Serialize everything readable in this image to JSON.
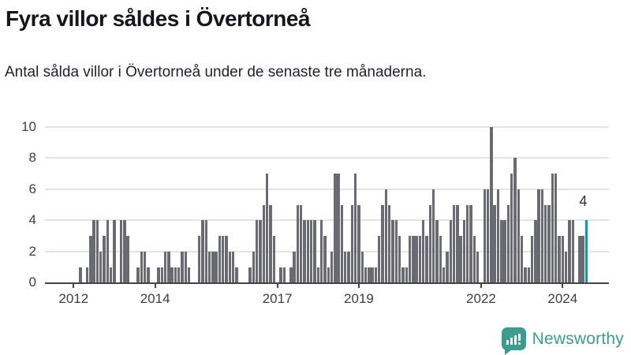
{
  "title": "Fyra villor såldes i Övertorneå",
  "subtitle": "Antal sålda villor i Övertorneå under de senaste tre månaderna.",
  "annotation": {
    "label": "4"
  },
  "logo": {
    "text": "Newsworthy"
  },
  "colors": {
    "bar": "#6a6a72",
    "highlight": "#00a0a0",
    "grid": "#e4e4e4",
    "axis": "#454545",
    "tick_text": "#3d3f42",
    "logo": "#3d9c8e"
  },
  "chart_data": {
    "type": "bar",
    "title": "Fyra villor såldes i Övertorneå",
    "subtitle": "Antal sålda villor i Övertorneå under de senaste tre månaderna.",
    "x_start": "2012-01",
    "x_end": "2024-08",
    "frequency": "monthly",
    "ylim": [
      0,
      10
    ],
    "grid": true,
    "y_ticks": [
      0,
      2,
      4,
      6,
      8,
      10
    ],
    "x_ticks": [
      {
        "label": "2012",
        "month_index": 0
      },
      {
        "label": "2014",
        "month_index": 24
      },
      {
        "label": "2017",
        "month_index": 60
      },
      {
        "label": "2019",
        "month_index": 84
      },
      {
        "label": "2022",
        "month_index": 120
      },
      {
        "label": "2024",
        "month_index": 144
      }
    ],
    "series": [
      {
        "name": "Antal sålda villor",
        "values_by_year": {
          "2012": [
            0,
            0,
            1,
            0,
            1,
            3,
            4,
            4,
            2,
            3,
            4,
            1
          ],
          "2013": [
            4,
            0,
            4,
            4,
            3,
            0,
            0,
            1,
            2,
            2,
            1,
            0
          ],
          "2014": [
            0,
            1,
            1,
            2,
            2,
            1,
            1,
            1,
            2,
            2,
            1,
            0
          ],
          "2015": [
            0,
            3,
            4,
            4,
            2,
            2,
            2,
            3,
            3,
            3,
            2,
            2
          ],
          "2016": [
            1,
            0,
            0,
            0,
            1,
            2,
            4,
            4,
            5,
            7,
            5,
            3
          ],
          "2017": [
            0,
            1,
            1,
            0,
            1,
            2,
            5,
            5,
            4,
            4,
            4,
            4
          ],
          "2018": [
            1,
            4,
            3,
            1,
            2,
            7,
            7,
            5,
            2,
            2,
            5,
            7
          ],
          "2019": [
            5,
            2,
            1,
            1,
            1,
            1,
            3,
            5,
            6,
            5,
            4,
            4
          ],
          "2020": [
            3,
            1,
            1,
            3,
            3,
            3,
            3,
            4,
            3,
            5,
            6,
            4
          ],
          "2021": [
            3,
            1,
            2,
            4,
            5,
            5,
            3,
            4,
            5,
            5,
            3,
            2
          ],
          "2022": [
            0,
            6,
            6,
            10,
            5,
            6,
            4,
            4,
            5,
            7,
            8,
            6
          ],
          "2023": [
            3,
            1,
            1,
            3,
            4,
            6,
            6,
            5,
            5,
            7,
            7,
            3
          ],
          "2024": [
            3,
            2,
            4,
            4,
            0,
            3,
            3,
            4
          ]
        }
      }
    ],
    "highlight_last_bar": true,
    "last_bar_value": 4
  }
}
